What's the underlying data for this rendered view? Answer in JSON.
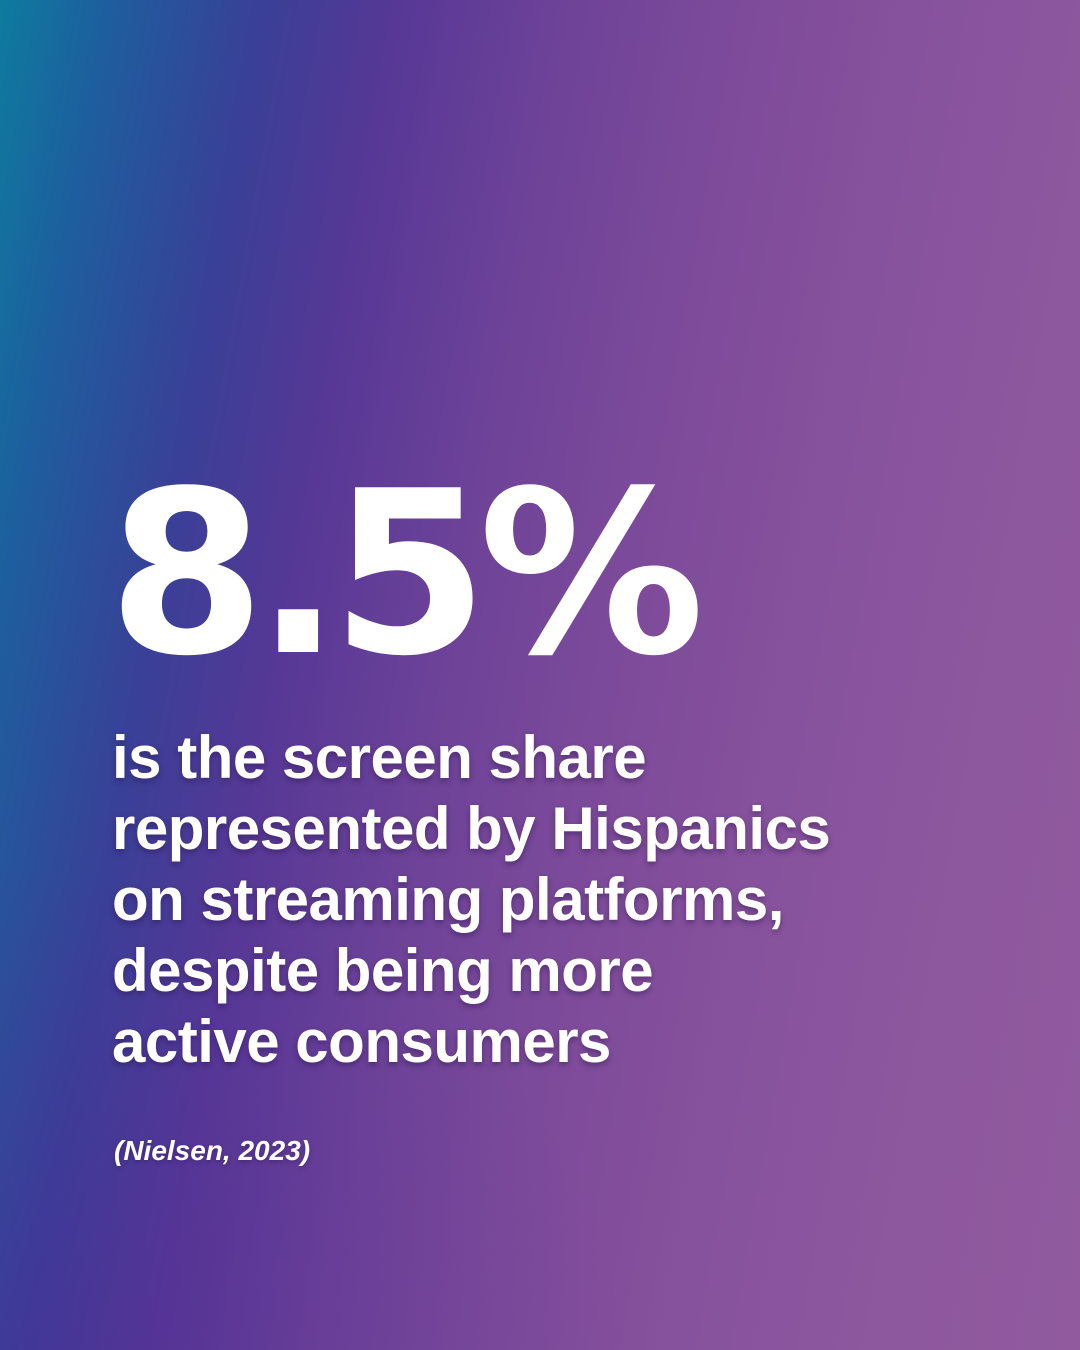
{
  "statistic": {
    "value": "8.5%"
  },
  "description": {
    "lines": [
      "is the screen share",
      "represented by Hispanics",
      "on streaming platforms,",
      "despite being more",
      "active consumers"
    ]
  },
  "source": {
    "text": "(Nielsen, 2023)"
  },
  "colors": {
    "gradient_left": "#0e7b9e",
    "gradient_mid": "#563896",
    "gradient_right": "#915a9f",
    "text": "#ffffff"
  }
}
